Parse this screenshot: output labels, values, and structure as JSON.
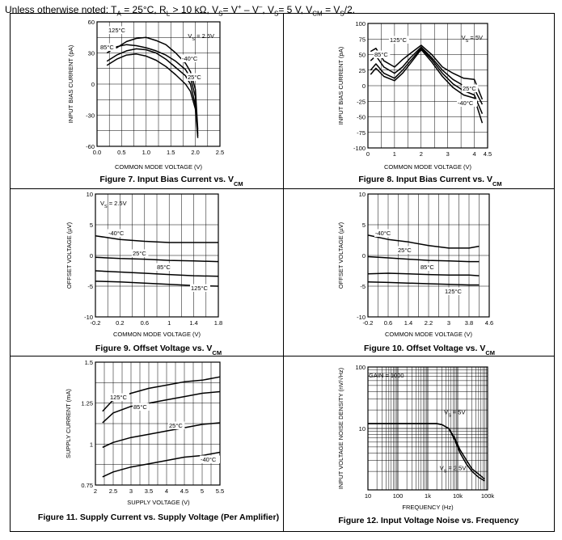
{
  "header": {
    "prefix": "Unless otherwise noted: T",
    "ta_sub": "A",
    "p1": " = 25°C, R",
    "rl_sub": "L",
    "p2": " > 10 kΩ, V",
    "vs_sub": "S",
    "p3": "= V",
    "plus": "+",
    "p4": " – V",
    "minus": "–",
    "p5": ", V",
    "vs2_sub": "S",
    "p6": "= 5 V, V",
    "vcm_sub": "CM",
    "p7": " = V",
    "vs3_sub": "S",
    "p8": "/2."
  },
  "chart_data": [
    {
      "id": "fig7",
      "type": "line",
      "caption": "Figure 7. Input Bias Current vs. V",
      "caption_sub": "CM",
      "xlabel": "COMMON MODE VOLTAGE (V)",
      "ylabel": "INPUT BIAS CURRENT (pA)",
      "xlim": [
        0,
        2.5
      ],
      "ylim": [
        -60,
        60
      ],
      "xticks": [
        0,
        0.5,
        1.0,
        1.5,
        2.0,
        2.5
      ],
      "xtick_labels": [
        "0.0",
        "0.5",
        "1.0",
        "1.5",
        "2.0",
        "2.5"
      ],
      "yticks": [
        -60,
        -30,
        0,
        30,
        60
      ],
      "ytick_labels": [
        "-60",
        "-30",
        "0",
        "30",
        "60"
      ],
      "xminor": 10,
      "yminor": 8,
      "annotation": {
        "text": "V",
        "sub": "S",
        "rest": " = 2.5V"
      },
      "series": [
        {
          "name": "125°C",
          "x": [
            0.2,
            0.4,
            0.6,
            0.8,
            1.0,
            1.2,
            1.4,
            1.6,
            1.8,
            1.9,
            2.0,
            2.05
          ],
          "y": [
            35,
            35,
            41,
            44,
            45,
            42,
            38,
            30,
            20,
            12,
            -5,
            -44
          ]
        },
        {
          "name": "85°C",
          "x": [
            0.2,
            0.4,
            0.6,
            0.8,
            1.0,
            1.2,
            1.4,
            1.6,
            1.8,
            1.9,
            2.0,
            2.05
          ],
          "y": [
            30,
            36,
            38,
            37,
            35,
            32,
            28,
            22,
            14,
            6,
            -12,
            -48
          ]
        },
        {
          "name": "-40°C",
          "x": [
            0.2,
            0.4,
            0.6,
            0.8,
            1.0,
            1.2,
            1.4,
            1.6,
            1.8,
            1.9,
            2.0,
            2.05
          ],
          "y": [
            22,
            28,
            32,
            34,
            33,
            30,
            24,
            16,
            8,
            0,
            -20,
            -50
          ]
        },
        {
          "name": "25°C",
          "x": [
            0.2,
            0.4,
            0.6,
            0.8,
            1.0,
            1.2,
            1.4,
            1.6,
            1.8,
            1.9,
            2.0,
            2.05
          ],
          "y": [
            18,
            24,
            28,
            29,
            27,
            23,
            17,
            9,
            0,
            -7,
            -24,
            -52
          ]
        }
      ]
    },
    {
      "id": "fig8",
      "type": "line",
      "caption": "Figure 8. Input Bias Current vs. V",
      "caption_sub": "CM",
      "xlabel": "COMMON MODE VOLTAGE (V)",
      "ylabel": "INPUT BIAS CURRENT (pA)",
      "xlim": [
        0,
        4.5
      ],
      "ylim": [
        -100,
        100
      ],
      "xticks": [
        0,
        1,
        2,
        3,
        4,
        4.5
      ],
      "xtick_labels": [
        "0",
        "1",
        "2",
        "3",
        "4",
        "4.5"
      ],
      "yticks": [
        -100,
        -75,
        -50,
        -25,
        0,
        25,
        50,
        75,
        100
      ],
      "ytick_labels": [
        "-100",
        "-75",
        "-50",
        "-25",
        "0",
        "25",
        "50",
        "75",
        "100"
      ],
      "xminor": 9,
      "yminor": 8,
      "annotation": {
        "text": "V",
        "sub": "S",
        "rest": " = 5V"
      },
      "series": [
        {
          "name": "125°C",
          "x": [
            0.1,
            0.3,
            0.6,
            1.0,
            1.3,
            1.6,
            2.0,
            2.4,
            2.8,
            3.2,
            3.6,
            4.0,
            4.3
          ],
          "y": [
            55,
            60,
            40,
            30,
            42,
            52,
            65,
            50,
            30,
            20,
            12,
            10,
            -22
          ]
        },
        {
          "name": "85°C",
          "x": [
            0.1,
            0.3,
            0.6,
            1.0,
            1.3,
            1.6,
            2.0,
            2.4,
            2.8,
            3.2,
            3.6,
            4.0,
            4.3
          ],
          "y": [
            40,
            48,
            30,
            20,
            30,
            45,
            62,
            45,
            25,
            10,
            0,
            -5,
            -30
          ]
        },
        {
          "name": "25°C",
          "x": [
            0.1,
            0.3,
            0.6,
            1.0,
            1.3,
            1.6,
            2.0,
            2.4,
            2.8,
            3.2,
            3.6,
            4.0,
            4.3
          ],
          "y": [
            25,
            35,
            20,
            12,
            25,
            40,
            60,
            42,
            20,
            3,
            -8,
            -15,
            -45
          ]
        },
        {
          "name": "-40°C",
          "x": [
            0.1,
            0.3,
            0.6,
            1.0,
            1.3,
            1.6,
            2.0,
            2.4,
            2.8,
            3.2,
            3.6,
            4.0,
            4.3
          ],
          "y": [
            18,
            28,
            15,
            8,
            20,
            36,
            58,
            38,
            15,
            -3,
            -15,
            -20,
            -60
          ]
        }
      ]
    },
    {
      "id": "fig9",
      "type": "line",
      "caption": "Figure 9. Offset Voltage vs. V",
      "caption_sub": "CM",
      "xlabel": "COMMON MODE VOLTAGE (V)",
      "ylabel": "OFFSET VOLTAGE (µV)",
      "xlim": [
        -0.2,
        1.8
      ],
      "ylim": [
        -10,
        10
      ],
      "xticks": [
        -0.2,
        0.2,
        0.6,
        1.0,
        1.4,
        1.8
      ],
      "xtick_labels": [
        "-0.2",
        "0.2",
        "0.6",
        "1",
        "1.4",
        "1.8"
      ],
      "yticks": [
        -10,
        -5,
        0,
        5,
        10
      ],
      "ytick_labels": [
        "-10",
        "-5",
        "0",
        "5",
        "10"
      ],
      "xminor": 10,
      "yminor": 4,
      "annotation": {
        "text": "V",
        "sub": "S",
        "rest": " = 2.5V"
      },
      "series": [
        {
          "name": "-40°C",
          "x": [
            -0.2,
            0.2,
            0.6,
            1.0,
            1.4,
            1.8
          ],
          "y": [
            3.2,
            2.6,
            2.3,
            2.1,
            2.1,
            2.1
          ]
        },
        {
          "name": "25°C",
          "x": [
            -0.2,
            0.2,
            0.6,
            1.0,
            1.4,
            1.8
          ],
          "y": [
            -0.3,
            -0.5,
            -0.6,
            -0.8,
            -0.9,
            -1.0
          ]
        },
        {
          "name": "85°C",
          "x": [
            -0.2,
            0.2,
            0.6,
            1.0,
            1.4,
            1.8
          ],
          "y": [
            -2.5,
            -2.7,
            -2.9,
            -3.1,
            -3.3,
            -3.4
          ]
        },
        {
          "name": "125°C",
          "x": [
            -0.2,
            0.2,
            0.6,
            1.0,
            1.4,
            1.8
          ],
          "y": [
            -4.2,
            -4.3,
            -4.5,
            -4.7,
            -4.9,
            -5.0
          ]
        }
      ]
    },
    {
      "id": "fig10",
      "type": "line",
      "caption": "Figure 10. Offset Voltage vs. V",
      "caption_sub": "CM",
      "xlabel": "COMMON MODE VOLTAGE (V)",
      "ylabel": "OFFSET VOLTAGE (µV)",
      "xlim": [
        -0.2,
        4.6
      ],
      "ylim": [
        -10,
        10
      ],
      "xticks": [
        -0.2,
        0.6,
        1.4,
        2.2,
        3.0,
        3.8,
        4.6
      ],
      "xtick_labels": [
        "-0.2",
        "0.6",
        "1.4",
        "2.2",
        "3",
        "3.8",
        "4.6"
      ],
      "yticks": [
        -10,
        -5,
        0,
        5,
        10
      ],
      "ytick_labels": [
        "-10",
        "-5",
        "0",
        "5",
        "10"
      ],
      "xminor": 12,
      "yminor": 4,
      "series": [
        {
          "name": "-40°C",
          "x": [
            -0.2,
            0.6,
            1.4,
            2.2,
            3.0,
            3.8,
            4.2
          ],
          "y": [
            3.3,
            2.6,
            2.2,
            1.6,
            1.2,
            1.2,
            1.5
          ]
        },
        {
          "name": "25°C",
          "x": [
            -0.2,
            0.6,
            1.4,
            2.2,
            3.0,
            3.8,
            4.2
          ],
          "y": [
            -0.2,
            -0.4,
            -0.6,
            -0.8,
            -0.9,
            -1.0,
            -1.0
          ]
        },
        {
          "name": "85°C",
          "x": [
            -0.2,
            0.6,
            1.4,
            2.2,
            3.0,
            3.8,
            4.2
          ],
          "y": [
            -3.0,
            -2.9,
            -3.0,
            -3.1,
            -3.2,
            -3.2,
            -3.3
          ]
        },
        {
          "name": "125°C",
          "x": [
            -0.2,
            0.6,
            1.4,
            2.2,
            3.0,
            3.8,
            4.2
          ],
          "y": [
            -4.3,
            -4.4,
            -4.5,
            -4.6,
            -4.7,
            -4.8,
            -4.8
          ]
        }
      ]
    },
    {
      "id": "fig11",
      "type": "line",
      "caption": "Figure 11. Supply Current vs. Supply Voltage (Per Amplifier)",
      "caption_sub": "",
      "xlabel": "SUPPLY VOLTAGE (V)",
      "ylabel": "SUPPLY CURRENT (mA)",
      "xlim": [
        2,
        5.5
      ],
      "ylim": [
        0.75,
        1.5
      ],
      "xticks": [
        2,
        2.5,
        3,
        3.5,
        4,
        4.5,
        5,
        5.5
      ],
      "xtick_labels": [
        "2",
        "2.5",
        "3",
        "3.5",
        "4",
        "4.5",
        "5",
        "5.5"
      ],
      "yticks": [
        0.75,
        1,
        1.25,
        1.5
      ],
      "ytick_labels": [
        "0.75",
        "1",
        "1.25",
        "1.5"
      ],
      "xminor": 14,
      "yminor": 6,
      "series": [
        {
          "name": "125°C",
          "x": [
            2.2,
            2.5,
            3,
            3.5,
            4,
            4.5,
            5,
            5.5
          ],
          "y": [
            1.2,
            1.27,
            1.31,
            1.34,
            1.36,
            1.38,
            1.39,
            1.41
          ]
        },
        {
          "name": "85°C",
          "x": [
            2.2,
            2.5,
            3,
            3.5,
            4,
            4.5,
            5,
            5.5
          ],
          "y": [
            1.13,
            1.19,
            1.23,
            1.25,
            1.27,
            1.29,
            1.31,
            1.32
          ]
        },
        {
          "name": "25°C",
          "x": [
            2.2,
            2.5,
            3,
            3.5,
            4,
            4.5,
            5,
            5.5
          ],
          "y": [
            0.98,
            1.01,
            1.04,
            1.06,
            1.08,
            1.1,
            1.12,
            1.13
          ]
        },
        {
          "name": "-40°C",
          "x": [
            2.2,
            2.5,
            3,
            3.5,
            4,
            4.5,
            5,
            5.5
          ],
          "y": [
            0.8,
            0.83,
            0.86,
            0.88,
            0.9,
            0.92,
            0.93,
            0.95
          ]
        }
      ]
    },
    {
      "id": "fig12",
      "type": "line",
      "xscale": "log",
      "yscale": "log",
      "caption": "Figure 12. Input Voltage Noise vs. Frequency",
      "caption_sub": "",
      "xlabel": "FREQUENCY (Hz)",
      "ylabel": "INPUT VOLTAGE NOISE DENSITY (nV/√Hz)",
      "xlim": [
        10,
        100000
      ],
      "ylim": [
        1,
        100
      ],
      "xticks": [
        10,
        100,
        1000,
        10000,
        100000
      ],
      "xtick_labels": [
        "10",
        "100",
        "1k",
        "10k",
        "100k"
      ],
      "yticks": [
        10,
        100
      ],
      "ytick_labels": [
        "10",
        "100"
      ],
      "annotation": {
        "text": "GAIN = 1000",
        "sub": "",
        "rest": ""
      },
      "labels": [
        {
          "text": "V",
          "sub": "S",
          "rest": " = 5V",
          "x": 3500,
          "y": 17
        },
        {
          "text": "V",
          "sub": "S",
          "rest": " = 2.5V",
          "x": 2500,
          "y": 2.1
        }
      ],
      "series": [
        {
          "name": "VS = 5V",
          "x": [
            10,
            50,
            100,
            300,
            1000,
            2000,
            3000,
            5000,
            8000,
            12000,
            20000,
            30000,
            50000,
            80000
          ],
          "y": [
            12,
            12,
            12,
            12,
            12,
            12,
            11.5,
            10,
            7,
            4.5,
            3,
            2.2,
            1.8,
            1.5
          ]
        },
        {
          "name": "VS = 2.5V",
          "x": [
            10,
            50,
            100,
            300,
            1000,
            2000,
            3000,
            5000,
            8000,
            12000,
            20000,
            30000,
            50000,
            80000
          ],
          "y": [
            12,
            12,
            12,
            12,
            12,
            12,
            11.5,
            10,
            6.5,
            4,
            2.6,
            2,
            1.6,
            1.4
          ]
        }
      ]
    }
  ]
}
